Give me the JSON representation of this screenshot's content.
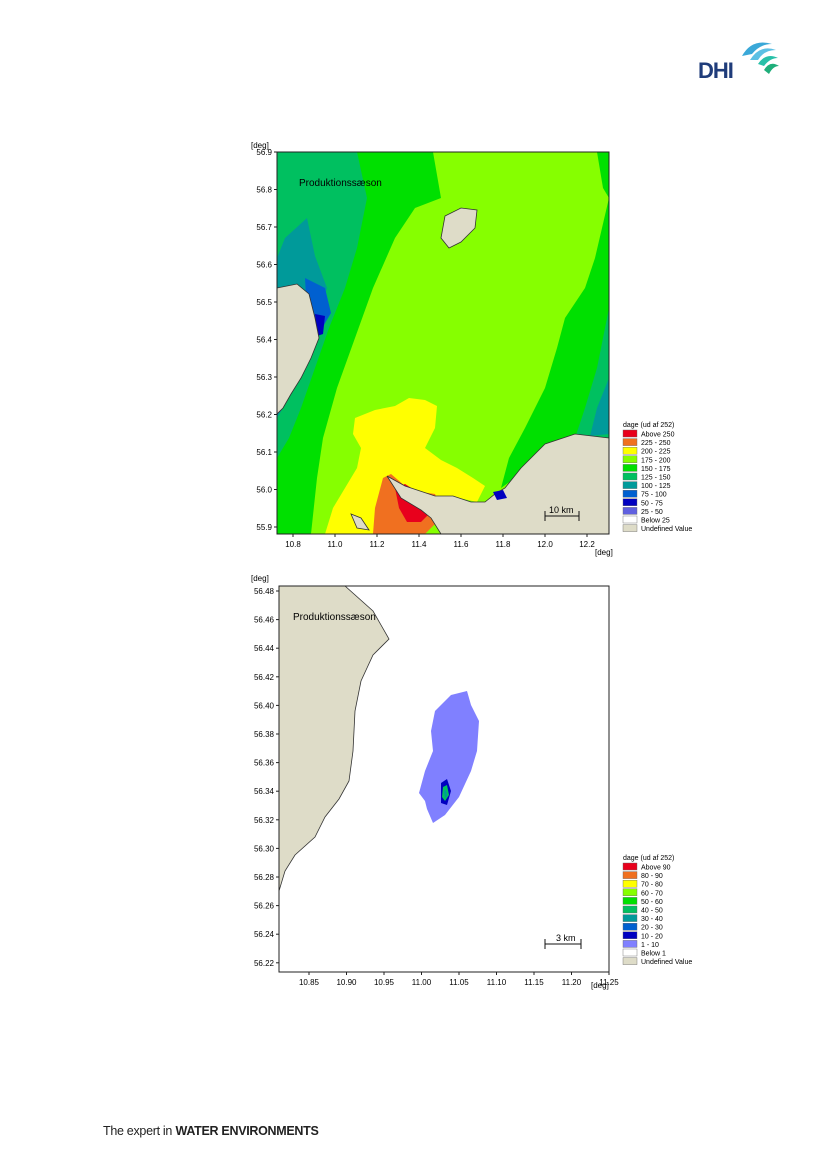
{
  "header": {
    "logo_text": "DHI"
  },
  "footer": {
    "prefix": "The expert in",
    "emphasis": "WATER ENVIRONMENTS"
  },
  "maps": [
    {
      "unit_y": "[deg]",
      "unit_x": "[deg]",
      "annotation": "Produktionssæson",
      "scale_bar": "10 km",
      "y_ticks": [
        "56.9",
        "56.8",
        "56.7",
        "56.6",
        "56.5",
        "56.4",
        "56.3",
        "56.2",
        "56.1",
        "56.0",
        "55.9"
      ],
      "x_ticks": [
        "10.8",
        "11.0",
        "11.2",
        "11.4",
        "11.6",
        "11.8",
        "12.0",
        "12.2"
      ],
      "legend": {
        "title": "dage (ud af 252)",
        "items": [
          {
            "label": "Above 250",
            "color": "#e8001c"
          },
          {
            "label": "225 - 250",
            "color": "#f07020"
          },
          {
            "label": "200 - 225",
            "color": "#ffff00"
          },
          {
            "label": "175 - 200",
            "color": "#86ff00"
          },
          {
            "label": "150 - 175",
            "color": "#00e000"
          },
          {
            "label": "125 - 150",
            "color": "#00c060"
          },
          {
            "label": "100 - 125",
            "color": "#009a9a"
          },
          {
            "label": "75 - 100",
            "color": "#0060d0"
          },
          {
            "label": "50 -   75",
            "color": "#0000c0"
          },
          {
            "label": "25 -   50",
            "color": "#6060e0"
          },
          {
            "label": "Below   25",
            "color": "#ffffff"
          },
          {
            "label": "Undefined Value",
            "color": "#dedcc8"
          }
        ]
      }
    },
    {
      "unit_y": "[deg]",
      "unit_x": "[deg]",
      "annotation": "Produktionssæson",
      "scale_bar": "3 km",
      "y_ticks": [
        "56.48",
        "56.46",
        "56.44",
        "56.42",
        "56.40",
        "56.38",
        "56.36",
        "56.34",
        "56.32",
        "56.30",
        "56.28",
        "56.26",
        "56.24",
        "56.22"
      ],
      "x_ticks": [
        "10.85",
        "10.90",
        "10.95",
        "11.00",
        "11.05",
        "11.10",
        "11.15",
        "11.20",
        "11.25"
      ],
      "legend": {
        "title": "dage (ud af 252)",
        "items": [
          {
            "label": "Above 90",
            "color": "#e8001c"
          },
          {
            "label": "80 - 90",
            "color": "#f07020"
          },
          {
            "label": "70 - 80",
            "color": "#ffff00"
          },
          {
            "label": "60 - 70",
            "color": "#86ff00"
          },
          {
            "label": "50 - 60",
            "color": "#00e000"
          },
          {
            "label": "40 - 50",
            "color": "#00c060"
          },
          {
            "label": "30 - 40",
            "color": "#009a9a"
          },
          {
            "label": "20 - 30",
            "color": "#0060d0"
          },
          {
            "label": "10 - 20",
            "color": "#0000c0"
          },
          {
            "label": "1 - 10",
            "color": "#8080ff"
          },
          {
            "label": "Below   1",
            "color": "#ffffff"
          },
          {
            "label": "Undefined Value",
            "color": "#dedcc8"
          }
        ]
      }
    }
  ]
}
